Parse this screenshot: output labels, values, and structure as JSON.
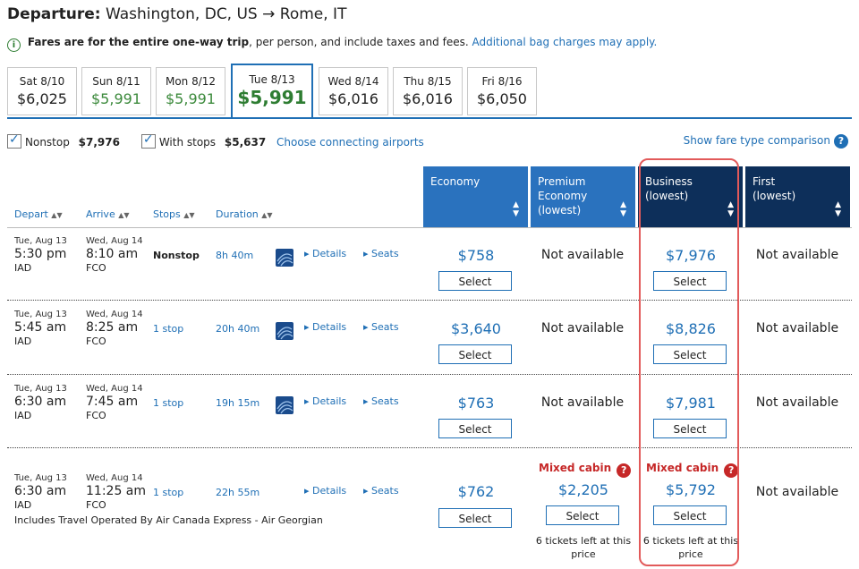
{
  "header": {
    "departure_label": "Departure:",
    "route": "Washington, DC, US → Rome, IT"
  },
  "info": {
    "text_bold": "Fares are for the entire one-way trip",
    "text": ", per person, and include taxes and fees.",
    "link": "Additional bag charges may apply."
  },
  "date_tabs": [
    {
      "day": "Sat 8/10",
      "price": "$6,025"
    },
    {
      "day": "Sun 8/11",
      "price": "$5,991"
    },
    {
      "day": "Mon 8/12",
      "price": "$5,991"
    },
    {
      "day": "Tue 8/13",
      "price": "$5,991"
    },
    {
      "day": "Wed 8/14",
      "price": "$6,016"
    },
    {
      "day": "Thu 8/15",
      "price": "$6,016"
    },
    {
      "day": "Fri 8/16",
      "price": "$6,050"
    }
  ],
  "filters": {
    "nonstop_label": "Nonstop",
    "nonstop_price": "$7,976",
    "withstops_label": "With stops",
    "withstops_price": "$5,637",
    "connecting_link": "Choose connecting airports",
    "fare_comparison": "Show fare type comparison"
  },
  "columns": {
    "economy": "Economy",
    "premium": "Premium",
    "premium2": "Economy",
    "premium_sub": "(lowest)",
    "business": "Business",
    "business_sub": "(lowest)",
    "first": "First",
    "first_sub": "(lowest)"
  },
  "sort_headers": {
    "depart": "Depart",
    "arrive": "Arrive",
    "stops": "Stops",
    "duration": "Duration"
  },
  "labels": {
    "details": "Details",
    "seats": "Seats",
    "select": "Select",
    "not_available": "Not available",
    "mixed_cabin": "Mixed cabin"
  },
  "flights": [
    {
      "dep_date": "Tue, Aug 13",
      "dep_time": "5:30 pm",
      "dep_apt": "IAD",
      "arr_date": "Wed, Aug 14",
      "arr_time": "8:10 am",
      "arr_apt": "FCO",
      "stops": "Nonstop",
      "duration": "8h 40m",
      "economy": "$758",
      "business": "$7,976"
    },
    {
      "dep_date": "Tue, Aug 13",
      "dep_time": "5:45 am",
      "dep_apt": "IAD",
      "arr_date": "Wed, Aug 14",
      "arr_time": "8:25 am",
      "arr_apt": "FCO",
      "stops": "1 stop",
      "duration": "20h 40m",
      "economy": "$3,640",
      "business": "$8,826"
    },
    {
      "dep_date": "Tue, Aug 13",
      "dep_time": "6:30 am",
      "dep_apt": "IAD",
      "arr_date": "Wed, Aug 14",
      "arr_time": "7:45 am",
      "arr_apt": "FCO",
      "stops": "1 stop",
      "duration": "19h 15m",
      "economy": "$763",
      "business": "$7,981"
    },
    {
      "dep_date": "Tue, Aug 13",
      "dep_time": "6:30 am",
      "dep_apt": "IAD",
      "arr_date": "Wed, Aug 14",
      "arr_time": "11:25 am",
      "arr_apt": "FCO",
      "stops": "1 stop",
      "duration": "22h 55m",
      "economy": "$762",
      "premium": "$2,205",
      "business": "$5,792",
      "note": "Includes Travel Operated By Air Canada Express - Air Georgian",
      "premium_tickets": "6 tickets left at this price",
      "business_tickets": "6 tickets left at this price"
    }
  ],
  "colors": {
    "brand_blue": "#1f6fb5",
    "header_blue": "#2a72be",
    "header_navy": "#0d2f5a",
    "highlight": "#e25a5a",
    "mixed_red": "#c62828"
  }
}
